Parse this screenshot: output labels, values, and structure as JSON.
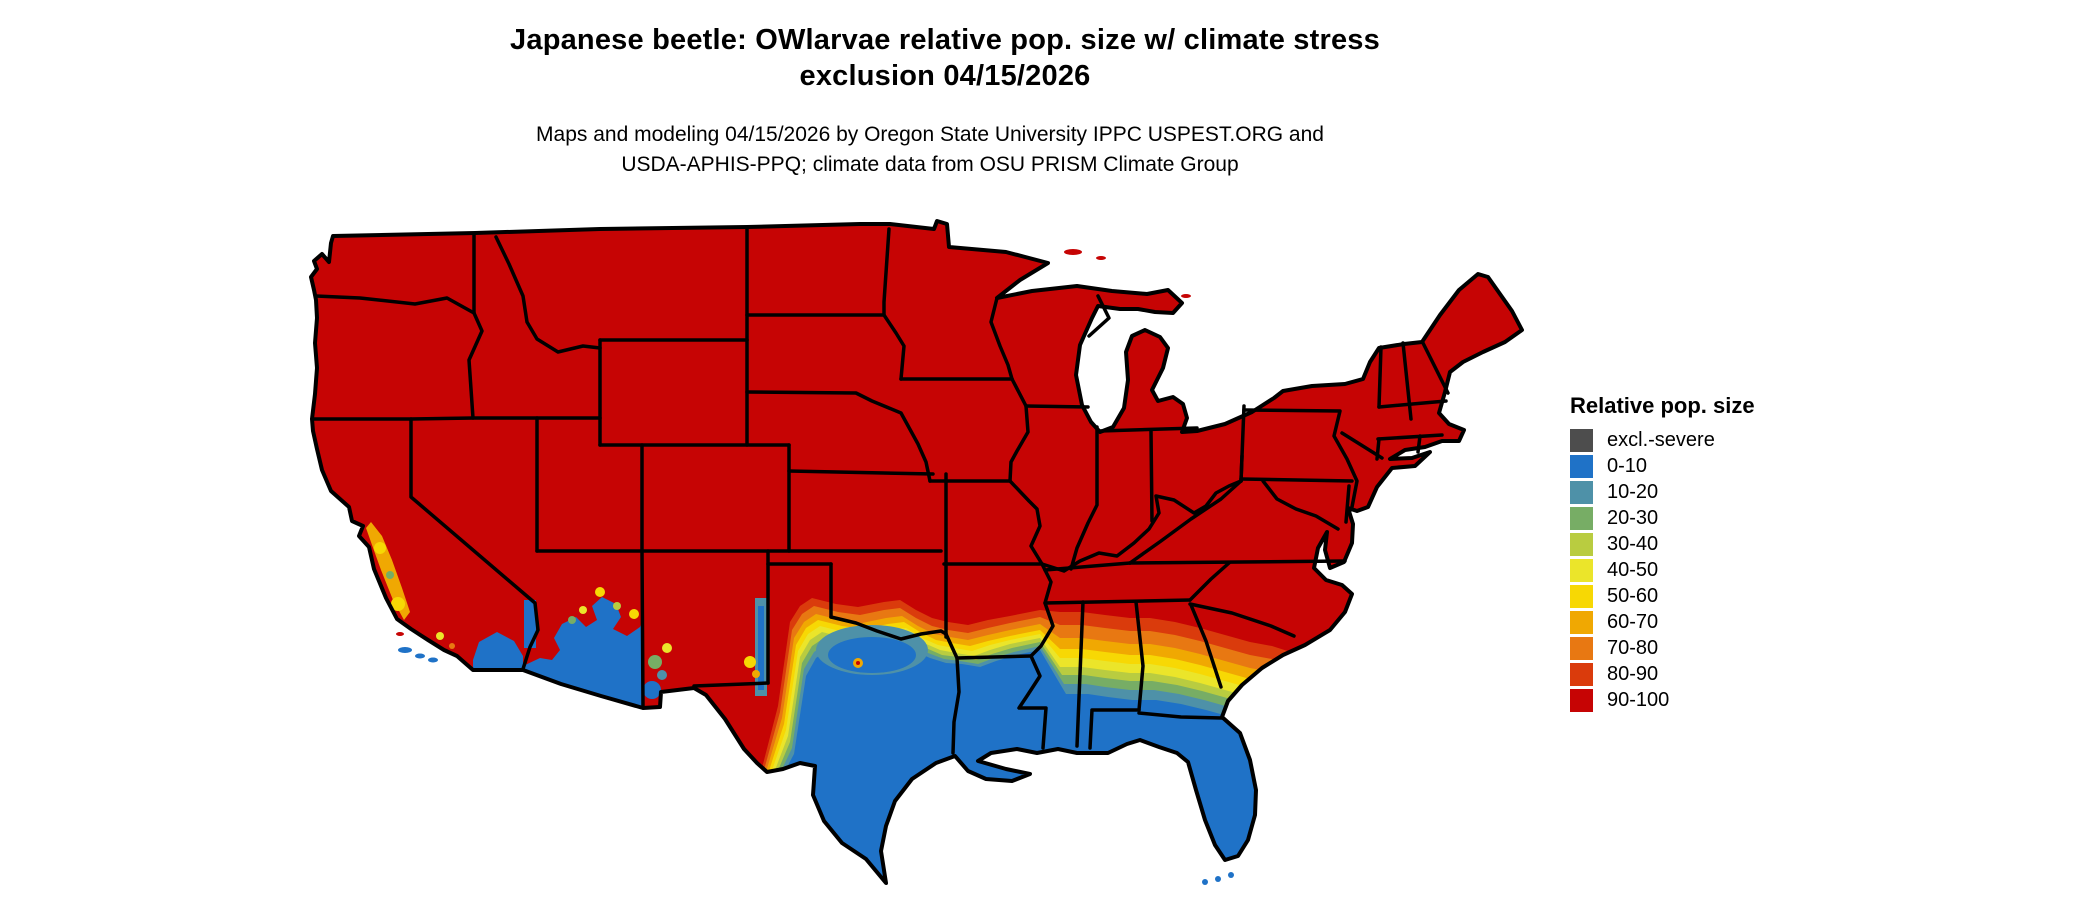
{
  "title": {
    "line1": "Japanese beetle: OWlarvae relative pop. size w/ climate stress",
    "line2": "exclusion 04/15/2026"
  },
  "subtitle": {
    "line1": "Maps and modeling 04/15/2026 by Oregon State University IPPC USPEST.ORG and",
    "line2": "USDA-APHIS-PPQ; climate data from OSU PRISM Climate Group"
  },
  "legend": {
    "title": "Relative pop. size",
    "items": [
      {
        "label": "excl.-severe",
        "color": "#4d4d4d"
      },
      {
        "label": "0-10",
        "color": "#1f72c7"
      },
      {
        "label": "10-20",
        "color": "#4e91a8"
      },
      {
        "label": "20-30",
        "color": "#77ad65"
      },
      {
        "label": "30-40",
        "color": "#b9cc40"
      },
      {
        "label": "40-50",
        "color": "#ebe52a"
      },
      {
        "label": "50-60",
        "color": "#f7d804"
      },
      {
        "label": "60-70",
        "color": "#f0a802"
      },
      {
        "label": "70-80",
        "color": "#e87812"
      },
      {
        "label": "80-90",
        "color": "#da3b0c"
      },
      {
        "label": "90-100",
        "color": "#c60404"
      }
    ]
  },
  "palette": {
    "excl": "#4d4d4d",
    "c0": "#1f72c7",
    "c10": "#4e91a8",
    "c20": "#77ad65",
    "c30": "#b9cc40",
    "c40": "#ebe52a",
    "c50": "#f7d804",
    "c60": "#f0a802",
    "c70": "#e87812",
    "c80": "#da3b0c",
    "c90": "#c60404",
    "border": "#000000",
    "water": "#ffffff"
  },
  "chart_data": {
    "type": "heatmap",
    "subtype": "us-choropleth-model-map",
    "title": "Japanese beetle: OWlarvae relative pop. size w/ climate stress exclusion 04/15/2026",
    "legend_title": "Relative pop. size",
    "classes": [
      "excl.-severe",
      "0-10",
      "10-20",
      "20-30",
      "30-40",
      "40-50",
      "50-60",
      "60-70",
      "70-80",
      "80-90",
      "90-100"
    ],
    "class_colors": [
      "#4d4d4d",
      "#1f72c7",
      "#4e91a8",
      "#77ad65",
      "#b9cc40",
      "#ebe52a",
      "#f7d804",
      "#f0a802",
      "#e87812",
      "#da3b0c",
      "#c60404"
    ],
    "regional_values": [
      {
        "region": "Most of contiguous US (North, Midwest, East, interior West)",
        "class": "90-100"
      },
      {
        "region": "South and coastal Texas, Louisiana, Gulf Coast, all of Florida, southern Georgia",
        "class": "0-10"
      },
      {
        "region": "Central Texas hill country (patchy)",
        "class": "10-30"
      },
      {
        "region": "Transition belt from central Texas/Oklahoma border through southern Arkansas, central Mississippi, Alabama, Georgia and coastal South Carolina",
        "class": "10-90 banded gradient"
      },
      {
        "region": "Southern Arizona desert and lower Colorado River valley, southeastern California desert",
        "class": "0-10"
      },
      {
        "region": "California Central Valley and central coast (patchy)",
        "class": "30-70"
      },
      {
        "region": "Rio Grande valley strip in New Mexico",
        "class": "0-20"
      }
    ]
  }
}
